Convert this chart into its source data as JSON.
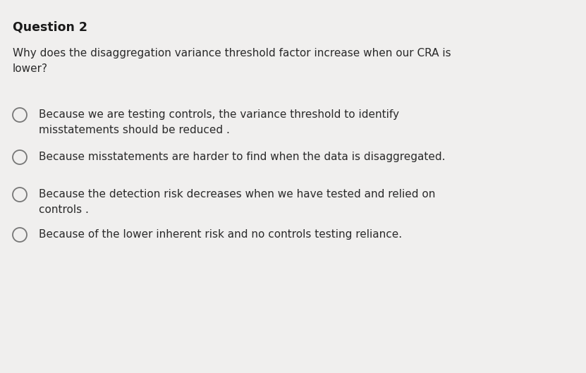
{
  "title": "Question 2",
  "question": "Why does the disaggregation variance threshold factor increase when our CRA is\nlower?",
  "options": [
    "Because we are testing controls, the variance threshold to identify\nmisstatements should be reduced .",
    "Because misstatements are harder to find when the data is disaggregated.",
    "Because the detection risk decreases when we have tested and relied on\ncontrols .",
    "Because of the lower inherent risk and no controls testing reliance."
  ],
  "bg_color": "#f0efee",
  "title_color": "#1a1a1a",
  "text_color": "#2a2a2a",
  "title_fontsize": 12.5,
  "question_fontsize": 11.0,
  "option_fontsize": 11.0,
  "circle_color": "#777777",
  "fig_width": 8.31,
  "fig_height": 5.29,
  "dpi": 100
}
